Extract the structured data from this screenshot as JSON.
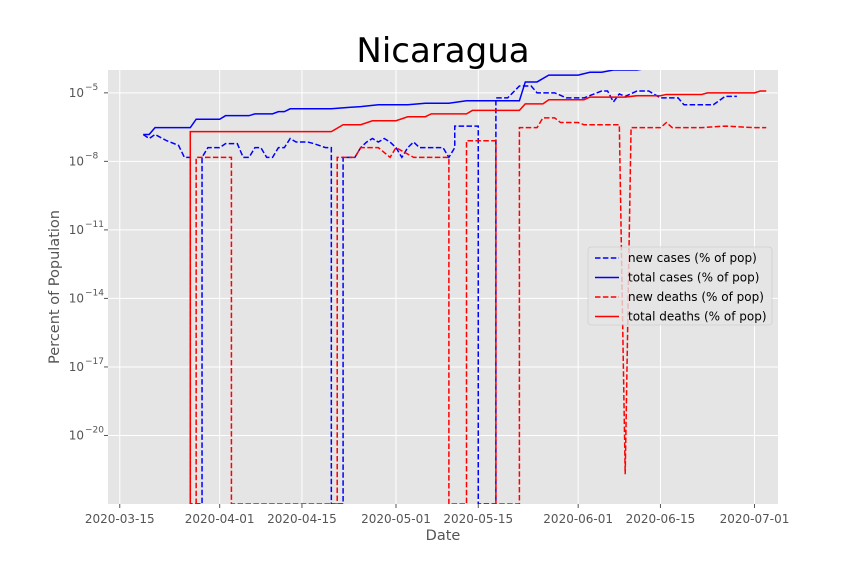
{
  "chart_data": {
    "type": "line",
    "title": "Nicaragua",
    "xlabel": "Date",
    "ylabel": "Percent of Population",
    "yscale": "log",
    "ylim_exponent": [
      -23,
      -4
    ],
    "xlim": [
      "2020-03-13",
      "2020-07-05"
    ],
    "x_ticks": [
      "2020-03-15",
      "2020-04-01",
      "2020-04-15",
      "2020-05-01",
      "2020-05-15",
      "2020-06-01",
      "2020-06-15",
      "2020-07-01"
    ],
    "y_ticks": [
      {
        "base": "10",
        "exp": "−5",
        "value": 1e-05
      },
      {
        "base": "10",
        "exp": "−8",
        "value": 1e-08
      },
      {
        "base": "10",
        "exp": "−11",
        "value": 1e-11
      },
      {
        "base": "10",
        "exp": "−14",
        "value": 1e-14
      },
      {
        "base": "10",
        "exp": "−17",
        "value": 1e-17
      },
      {
        "base": "10",
        "exp": "−20",
        "value": 1e-20
      }
    ],
    "grid": true,
    "legend_position": "center-right",
    "series": [
      {
        "name": "new cases (% of pop)",
        "color": "#0000ff",
        "style": "dashed",
        "points": [
          [
            "2020-03-19",
            1.5e-07
          ],
          [
            "2020-03-20",
            1e-07
          ],
          [
            "2020-03-21",
            1.5e-07
          ],
          [
            "2020-03-23",
            8e-08
          ],
          [
            "2020-03-25",
            5e-08
          ],
          [
            "2020-03-26",
            1.5e-08
          ],
          [
            "2020-03-27",
            1.5e-08
          ],
          [
            "2020-03-27",
            1e-24
          ],
          [
            "2020-03-29",
            1e-24
          ],
          [
            "2020-03-29",
            1.5e-08
          ],
          [
            "2020-03-30",
            4e-08
          ],
          [
            "2020-04-01",
            4e-08
          ],
          [
            "2020-04-02",
            6e-08
          ],
          [
            "2020-04-04",
            6e-08
          ],
          [
            "2020-04-05",
            1.5e-08
          ],
          [
            "2020-04-06",
            1.5e-08
          ],
          [
            "2020-04-07",
            4e-08
          ],
          [
            "2020-04-08",
            4e-08
          ],
          [
            "2020-04-09",
            1.5e-08
          ],
          [
            "2020-04-10",
            1.5e-08
          ],
          [
            "2020-04-11",
            4e-08
          ],
          [
            "2020-04-12",
            4e-08
          ],
          [
            "2020-04-13",
            1e-07
          ],
          [
            "2020-04-14",
            7e-08
          ],
          [
            "2020-04-16",
            7e-08
          ],
          [
            "2020-04-17",
            6e-08
          ],
          [
            "2020-04-19",
            4e-08
          ],
          [
            "2020-04-20",
            4e-08
          ],
          [
            "2020-04-20",
            1e-24
          ],
          [
            "2020-04-22",
            1e-24
          ],
          [
            "2020-04-22",
            1.5e-08
          ],
          [
            "2020-04-23",
            1.5e-08
          ],
          [
            "2020-04-24",
            1.5e-08
          ],
          [
            "2020-04-25",
            4e-08
          ],
          [
            "2020-04-26",
            7e-08
          ],
          [
            "2020-04-27",
            1e-07
          ],
          [
            "2020-04-28",
            7e-08
          ],
          [
            "2020-04-29",
            1e-07
          ],
          [
            "2020-04-30",
            7e-08
          ],
          [
            "2020-05-01",
            4e-08
          ],
          [
            "2020-05-02",
            1.5e-08
          ],
          [
            "2020-05-03",
            4e-08
          ],
          [
            "2020-05-04",
            7e-08
          ],
          [
            "2020-05-05",
            4e-08
          ],
          [
            "2020-05-08",
            4e-08
          ],
          [
            "2020-05-09",
            4e-08
          ],
          [
            "2020-05-10",
            1.5e-08
          ],
          [
            "2020-05-11",
            4e-08
          ],
          [
            "2020-05-11",
            3.5e-07
          ],
          [
            "2020-05-15",
            3.5e-07
          ],
          [
            "2020-05-15",
            1e-24
          ],
          [
            "2020-05-18",
            1e-24
          ],
          [
            "2020-05-18",
            6e-06
          ],
          [
            "2020-05-20",
            6e-06
          ],
          [
            "2020-05-22",
            2e-05
          ],
          [
            "2020-05-24",
            2e-05
          ],
          [
            "2020-05-25",
            1e-05
          ],
          [
            "2020-05-28",
            1e-05
          ],
          [
            "2020-05-30",
            6e-06
          ],
          [
            "2020-06-02",
            6e-06
          ],
          [
            "2020-06-05",
            1.2e-05
          ],
          [
            "2020-06-06",
            1.2e-05
          ],
          [
            "2020-06-07",
            4e-06
          ],
          [
            "2020-06-08",
            9e-06
          ],
          [
            "2020-06-09",
            7e-06
          ],
          [
            "2020-06-11",
            1.2e-05
          ],
          [
            "2020-06-13",
            1.2e-05
          ],
          [
            "2020-06-15",
            6e-06
          ],
          [
            "2020-06-18",
            6e-06
          ],
          [
            "2020-06-19",
            3e-06
          ],
          [
            "2020-06-24",
            3e-06
          ],
          [
            "2020-06-26",
            7e-06
          ],
          [
            "2020-06-28",
            7e-06
          ]
        ]
      },
      {
        "name": "total cases (% of pop)",
        "color": "#0000ff",
        "style": "solid",
        "points": [
          [
            "2020-03-19",
            1.5e-07
          ],
          [
            "2020-03-20",
            1.5e-07
          ],
          [
            "2020-03-21",
            3e-07
          ],
          [
            "2020-03-27",
            3e-07
          ],
          [
            "2020-03-28",
            7e-07
          ],
          [
            "2020-04-01",
            7e-07
          ],
          [
            "2020-04-02",
            1e-06
          ],
          [
            "2020-04-06",
            1e-06
          ],
          [
            "2020-04-07",
            1.2e-06
          ],
          [
            "2020-04-10",
            1.2e-06
          ],
          [
            "2020-04-11",
            1.5e-06
          ],
          [
            "2020-04-12",
            1.5e-06
          ],
          [
            "2020-04-13",
            2e-06
          ],
          [
            "2020-04-20",
            2e-06
          ],
          [
            "2020-04-23",
            2.3e-06
          ],
          [
            "2020-04-25",
            2.5e-06
          ],
          [
            "2020-04-28",
            3e-06
          ],
          [
            "2020-05-03",
            3e-06
          ],
          [
            "2020-05-06",
            3.5e-06
          ],
          [
            "2020-05-10",
            3.5e-06
          ],
          [
            "2020-05-13",
            4.5e-06
          ],
          [
            "2020-05-17",
            4.5e-06
          ],
          [
            "2020-05-22",
            4.5e-06
          ],
          [
            "2020-05-23",
            3e-05
          ],
          [
            "2020-05-25",
            3e-05
          ],
          [
            "2020-05-27",
            6e-05
          ],
          [
            "2020-06-01",
            6e-05
          ],
          [
            "2020-06-03",
            8e-05
          ],
          [
            "2020-06-05",
            8e-05
          ],
          [
            "2020-06-07",
            0.0001
          ],
          [
            "2020-06-11",
            0.0001
          ],
          [
            "2020-06-13",
            0.00012
          ],
          [
            "2020-06-15",
            0.00012
          ],
          [
            "2020-06-18",
            0.00015
          ],
          [
            "2020-06-23",
            0.00015
          ],
          [
            "2020-06-25",
            0.00018
          ],
          [
            "2020-07-02",
            0.00018
          ],
          [
            "2020-07-03",
            0.0002
          ],
          [
            "2020-07-04",
            0.0002
          ]
        ]
      },
      {
        "name": "new deaths (% of pop)",
        "color": "#ff0000",
        "style": "dashed",
        "points": [
          [
            "2020-03-28",
            1e-24
          ],
          [
            "2020-03-28",
            1.5e-08
          ],
          [
            "2020-04-03",
            1.5e-08
          ],
          [
            "2020-04-03",
            1e-24
          ],
          [
            "2020-04-21",
            1e-24
          ],
          [
            "2020-04-21",
            1.5e-08
          ],
          [
            "2020-04-24",
            1.5e-08
          ],
          [
            "2020-04-25",
            4e-08
          ],
          [
            "2020-04-28",
            4e-08
          ],
          [
            "2020-04-30",
            1.5e-08
          ],
          [
            "2020-05-01",
            4e-08
          ],
          [
            "2020-05-04",
            1.5e-08
          ],
          [
            "2020-05-06",
            1.5e-08
          ],
          [
            "2020-05-10",
            1.5e-08
          ],
          [
            "2020-05-10",
            1e-24
          ],
          [
            "2020-05-13",
            1e-24
          ],
          [
            "2020-05-13",
            8e-08
          ],
          [
            "2020-05-18",
            8e-08
          ],
          [
            "2020-05-18",
            1e-24
          ],
          [
            "2020-05-22",
            1e-24
          ],
          [
            "2020-05-22",
            3e-07
          ],
          [
            "2020-05-25",
            3e-07
          ],
          [
            "2020-05-26",
            8e-07
          ],
          [
            "2020-05-28",
            8e-07
          ],
          [
            "2020-05-29",
            5e-07
          ],
          [
            "2020-06-01",
            5e-07
          ],
          [
            "2020-06-02",
            4e-07
          ],
          [
            "2020-06-08",
            4e-07
          ],
          [
            "2020-06-09",
            2e-22
          ],
          [
            "2020-06-10",
            3e-07
          ],
          [
            "2020-06-15",
            3e-07
          ],
          [
            "2020-06-16",
            5e-07
          ],
          [
            "2020-06-17",
            3e-07
          ],
          [
            "2020-06-22",
            3e-07
          ],
          [
            "2020-06-26",
            3.5e-07
          ],
          [
            "2020-07-01",
            3e-07
          ],
          [
            "2020-07-03",
            3e-07
          ]
        ]
      },
      {
        "name": "total deaths (% of pop)",
        "color": "#ff0000",
        "style": "solid",
        "points": [
          [
            "2020-03-27",
            1e-24
          ],
          [
            "2020-03-27",
            2e-07
          ],
          [
            "2020-04-20",
            2e-07
          ],
          [
            "2020-04-22",
            4e-07
          ],
          [
            "2020-04-25",
            4e-07
          ],
          [
            "2020-04-27",
            6e-07
          ],
          [
            "2020-05-01",
            6e-07
          ],
          [
            "2020-05-03",
            9e-07
          ],
          [
            "2020-05-06",
            9e-07
          ],
          [
            "2020-05-07",
            1.2e-06
          ],
          [
            "2020-05-13",
            1.2e-06
          ],
          [
            "2020-05-14",
            1.7e-06
          ],
          [
            "2020-05-22",
            1.7e-06
          ],
          [
            "2020-05-23",
            3.3e-06
          ],
          [
            "2020-05-26",
            3.3e-06
          ],
          [
            "2020-05-27",
            5e-06
          ],
          [
            "2020-06-02",
            5e-06
          ],
          [
            "2020-06-03",
            6.5e-06
          ],
          [
            "2020-06-09",
            6.5e-06
          ],
          [
            "2020-06-11",
            7.5e-06
          ],
          [
            "2020-06-15",
            7.5e-06
          ],
          [
            "2020-06-16",
            8.5e-06
          ],
          [
            "2020-06-22",
            8.5e-06
          ],
          [
            "2020-06-23",
            1e-05
          ],
          [
            "2020-07-01",
            1e-05
          ],
          [
            "2020-07-02",
            1.2e-05
          ],
          [
            "2020-07-03",
            1.2e-05
          ]
        ]
      }
    ]
  }
}
